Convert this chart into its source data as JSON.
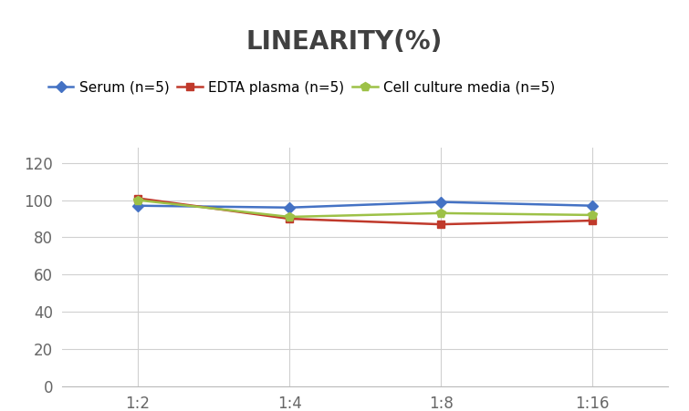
{
  "title": "LINEARITY(%)",
  "x_labels": [
    "1:2",
    "1:4",
    "1:8",
    "1:16"
  ],
  "x_values": [
    0,
    1,
    2,
    3
  ],
  "series": [
    {
      "label": "Serum (n=5)",
      "values": [
        97,
        96,
        99,
        97
      ],
      "color": "#4472C4",
      "marker": "D",
      "markersize": 6
    },
    {
      "label": "EDTA plasma (n=5)",
      "values": [
        101,
        90,
        87,
        89
      ],
      "color": "#C0392B",
      "marker": "s",
      "markersize": 6
    },
    {
      "label": "Cell culture media (n=5)",
      "values": [
        100,
        91,
        93,
        92
      ],
      "color": "#9DC147",
      "marker": "p",
      "markersize": 7
    }
  ],
  "ylim": [
    0,
    128
  ],
  "yticks": [
    0,
    20,
    40,
    60,
    80,
    100,
    120
  ],
  "background_color": "#FFFFFF",
  "title_fontsize": 20,
  "title_color": "#404040",
  "legend_fontsize": 11,
  "tick_fontsize": 12,
  "tick_color": "#666666",
  "grid_color": "#D0D0D0",
  "line_width": 1.8
}
